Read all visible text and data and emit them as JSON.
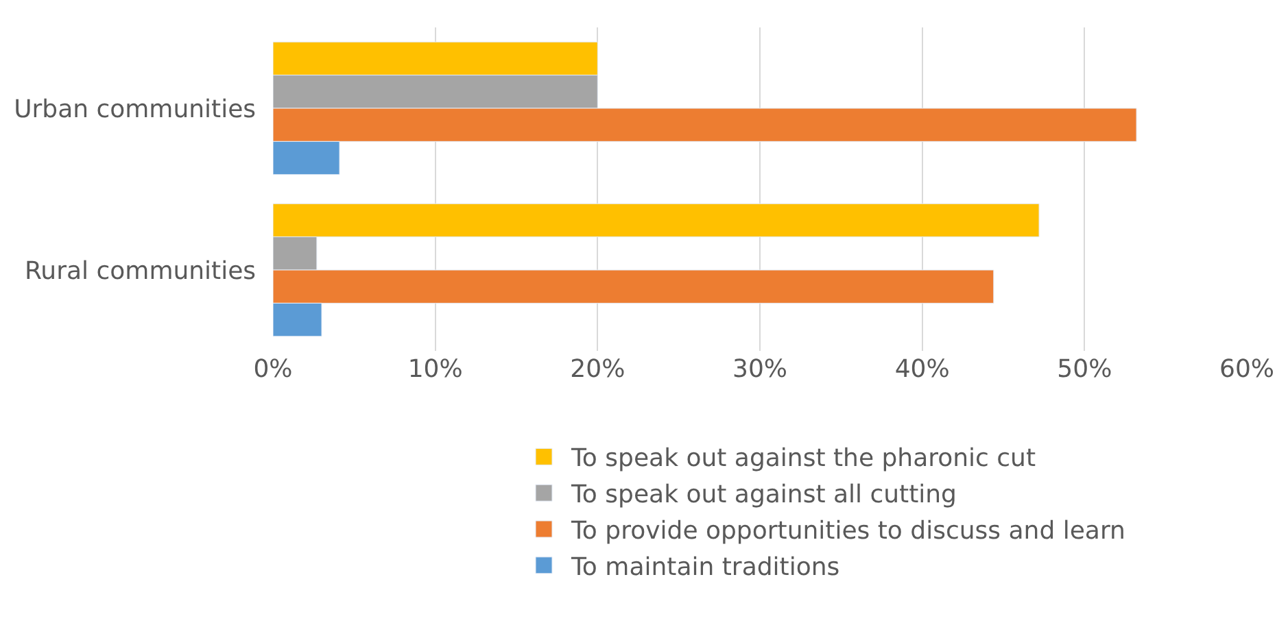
{
  "chart_data": {
    "type": "bar",
    "orientation": "horizontal",
    "categories": [
      "Urban communities",
      "Rural communities"
    ],
    "series": [
      {
        "name": "To speak out against the pharonic cut",
        "color": "#ffc000",
        "values": [
          20,
          47.2
        ]
      },
      {
        "name": "To speak out against all cutting",
        "color": "#a5a5a5",
        "values": [
          20,
          2.7
        ]
      },
      {
        "name": "To provide opportunities to discuss and learn",
        "color": "#ed7d31",
        "values": [
          53.2,
          44.4
        ]
      },
      {
        "name": "To maintain traditions",
        "color": "#5b9bd5",
        "values": [
          4.1,
          3.0
        ]
      }
    ],
    "xlim": [
      0,
      60
    ],
    "xticks": [
      {
        "value": 0,
        "label": "0%"
      },
      {
        "value": 10,
        "label": "10%"
      },
      {
        "value": 20,
        "label": "20%"
      },
      {
        "value": 30,
        "label": "30%"
      },
      {
        "value": 40,
        "label": "40%"
      },
      {
        "value": 50,
        "label": "50%"
      },
      {
        "value": 60,
        "label": "60%"
      }
    ],
    "grid": "x",
    "legend": "bottom"
  }
}
